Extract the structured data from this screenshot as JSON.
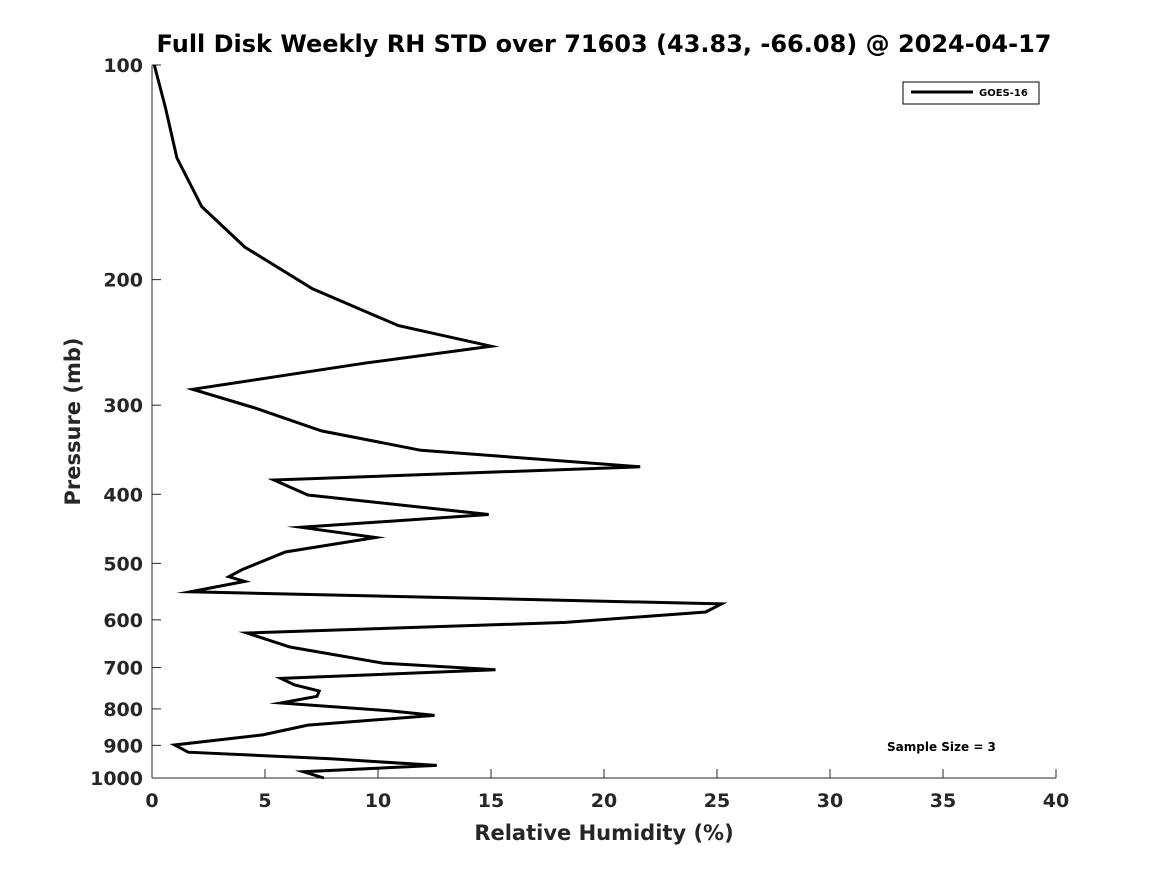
{
  "chart_data": {
    "type": "line",
    "title": "Full Disk Weekly RH STD over 71603 (43.83, -66.08) @ 2024-04-17",
    "xlabel": "Relative Humidity (%)",
    "ylabel": "Pressure (mb)",
    "xlim": [
      0,
      40
    ],
    "ylim": [
      100,
      1000
    ],
    "y_scale": "log",
    "y_reversed": true,
    "x_ticks": [
      0,
      5,
      10,
      15,
      20,
      25,
      30,
      35,
      40
    ],
    "y_ticks": [
      100,
      200,
      300,
      400,
      500,
      600,
      700,
      800,
      900,
      1000
    ],
    "grid": false,
    "legend_position": "top-right",
    "series": [
      {
        "name": "GOES-16",
        "color": "#000000",
        "x": [
          0.1,
          0.6,
          1.1,
          2.2,
          4.1,
          7.1,
          10.9,
          15.0,
          9.4,
          1.8,
          4.6,
          7.5,
          11.9,
          21.6,
          5.4,
          6.9,
          14.9,
          6.6,
          9.9,
          5.9,
          4.0,
          3.4,
          4.1,
          1.7,
          25.2,
          24.5,
          18.3,
          4.2,
          6.1,
          10.2,
          15.2,
          5.7,
          6.3,
          7.4,
          7.3,
          5.7,
          10.5,
          12.5,
          6.9,
          4.9,
          1.0,
          1.6,
          7.9,
          12.6,
          6.7,
          7.6
        ],
        "y": [
          100,
          115,
          135,
          158,
          180,
          206,
          232,
          248,
          262,
          285,
          303,
          326,
          347,
          366,
          382,
          401,
          427,
          445,
          460,
          482,
          510,
          522,
          530,
          548,
          570,
          585,
          605,
          626,
          655,
          690,
          705,
          725,
          740,
          755,
          768,
          785,
          805,
          817,
          843,
          870,
          899,
          920,
          940,
          960,
          980,
          1000
        ]
      }
    ],
    "annotations": [
      {
        "text": "Sample Size = 3",
        "position": "bottom-right"
      }
    ]
  }
}
